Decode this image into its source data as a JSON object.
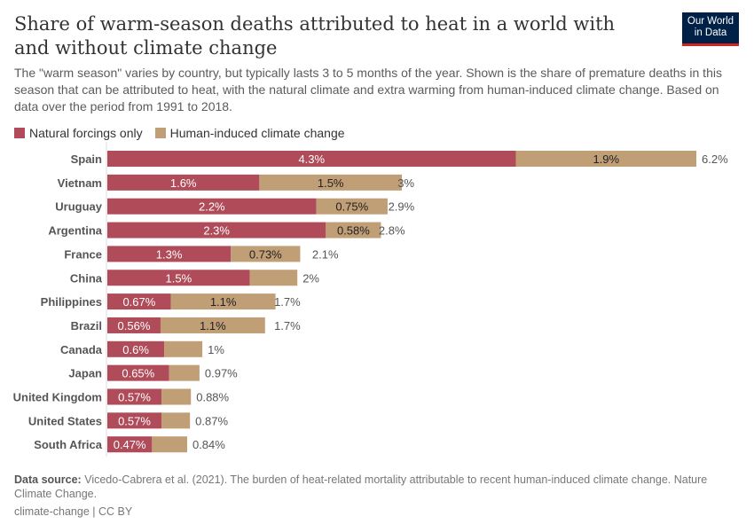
{
  "title": "Share of warm-season deaths attributed to heat in a world with and without climate change",
  "subtitle": "The \"warm season\" varies by country, but typically lasts 3 to 5 months of the year. Shown is the share of premature deaths in this season that can be attributed to heat, with the natural climate and extra warming from human-induced climate change. Based on data over the period from 1991 to 2018.",
  "logo": "Our World in Data",
  "source_label": "Data source:",
  "source": "Vicedo-Cabrera et al. (2021). The burden of heat-related mortality attributable to recent human-induced climate change. Nature Climate Change.",
  "license": "climate-change | CC BY",
  "chart_data": {
    "type": "bar",
    "orientation": "horizontal",
    "stacked": true,
    "unit": "%",
    "legend_placement": "top-left",
    "categories": [
      "Spain",
      "Vietnam",
      "Uruguay",
      "Argentina",
      "France",
      "China",
      "Philippines",
      "Brazil",
      "Canada",
      "Japan",
      "United Kingdom",
      "United States",
      "South Africa"
    ],
    "series": [
      {
        "name": "Natural forcings only",
        "color": "#b04b5a",
        "values": [
          4.3,
          1.6,
          2.2,
          2.3,
          1.3,
          1.5,
          0.67,
          0.56,
          0.6,
          0.65,
          0.57,
          0.57,
          0.47
        ],
        "labels": [
          "4.3%",
          "1.6%",
          "2.2%",
          "2.3%",
          "1.3%",
          "1.5%",
          "0.67%",
          "0.56%",
          "0.6%",
          "0.65%",
          "0.57%",
          "0.57%",
          "0.47%"
        ]
      },
      {
        "name": "Human-induced climate change",
        "color": "#c09e76",
        "values": [
          1.9,
          1.5,
          0.75,
          0.58,
          0.73,
          0.5,
          1.1,
          1.1,
          0.4,
          0.32,
          0.31,
          0.3,
          0.37
        ],
        "labels": [
          "1.9%",
          "1.5%",
          "0.75%",
          "0.58%",
          "0.73%",
          "",
          "1.1%",
          "1.1%",
          "",
          "",
          "",
          "",
          ""
        ]
      }
    ],
    "totals": [
      "6.2%",
      "3%",
      "2.9%",
      "2.8%",
      "2.1%",
      "2%",
      "1.7%",
      "1.7%",
      "1%",
      "0.97%",
      "0.88%",
      "0.87%",
      "0.84%"
    ],
    "total_values": [
      6.2,
      3,
      2.9,
      2.8,
      2.1,
      2,
      1.7,
      1.7,
      1,
      0.97,
      0.88,
      0.87,
      0.84
    ]
  }
}
